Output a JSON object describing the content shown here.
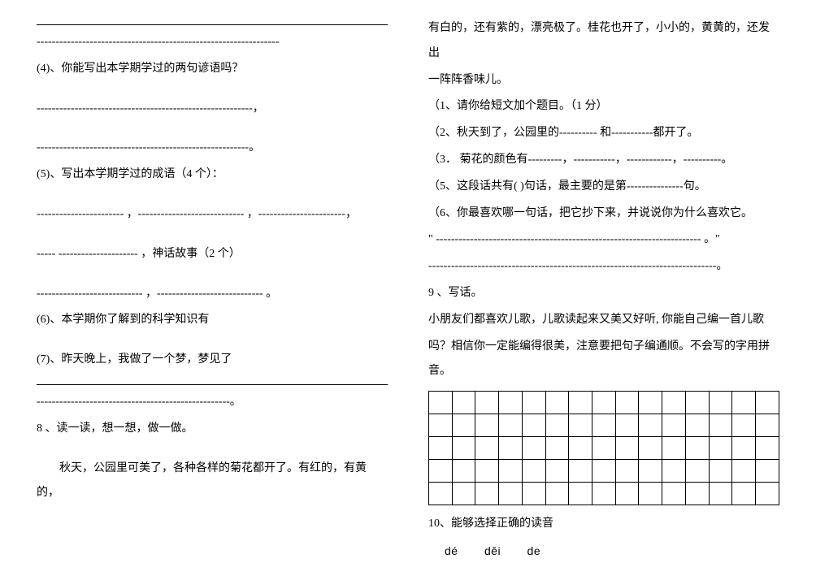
{
  "left": {
    "blank_solid1": "",
    "dashes1": "----------------------------------------------------------------",
    "q4": "(4)、你能写出本学期学过的两句谚语吗？",
    "dashes2": "---------------------------------------------------------，",
    "dashes3": "--------------------------------------------------------。",
    "q5": "(5)、写出本学期学过的成语（4 个）：",
    "dashes4": "----------------------- ，---------------------------- ，-----------------------，",
    "q5b": "----- --------------------- ，神话故事（2 个）",
    "dashes5": "---------------------------- ，---------------------------- 。",
    "q6": "(6)、本学期你了解到的科学知识有",
    "q7": "(7)、昨天晚上，我做了一个梦，梦见了",
    "blank_solid2": "",
    "dashes6": "---------------------------------------------------。",
    "q8": "8 、读一读，想一想，做一做。",
    "q8_para": "秋天，公园里可美了，各种各样的菊花都开了。有红的，有黄的，"
  },
  "right": {
    "para1": "有白的，还有紫的，漂亮极了。桂花也开了，小小的，黄黄的，还发出",
    "para2": "一阵阵香味儿。",
    "sub1": "（1、请你给短文加个题目。（1 分）",
    "sub2": "（2、秋天到了，公园里的----------    和-----------都开了。",
    "sub3": "（3． 菊花的颜色有---------，-----------，------------，----------。",
    "sub5": "（5、这段话共有(        )句话，最主要的是第---------------句。",
    "sub6": "（6、你最喜欢哪一句话，把它抄下来，并说说你为什么喜欢它。",
    "quote_dashes": "\"  ---------------------------------------------------------------------- 。\"",
    "dashes_end": "----------------------------------------------------------------------------。",
    "q9": "9 、写话。",
    "q9_para1": "小朋友们都喜欢儿歌，儿歌读起来又美又好听, 你能自己编一首儿歌",
    "q9_para2": "吗？相信你一定能编得很美，注意要把句子编通顺。不会写的字用拼音。",
    "q10": "10、能够选择正确的读音",
    "pinyin": {
      "p1": "dé",
      "p2": "děi",
      "p3": "de"
    },
    "grid": {
      "rows": 5,
      "cols": 15
    }
  },
  "styles": {
    "bg_color": "#ffffff",
    "text_color": "#000000",
    "font_size": 14,
    "line_height": 2.2,
    "grid_cell_size": 28,
    "grid_border": "#000000"
  }
}
